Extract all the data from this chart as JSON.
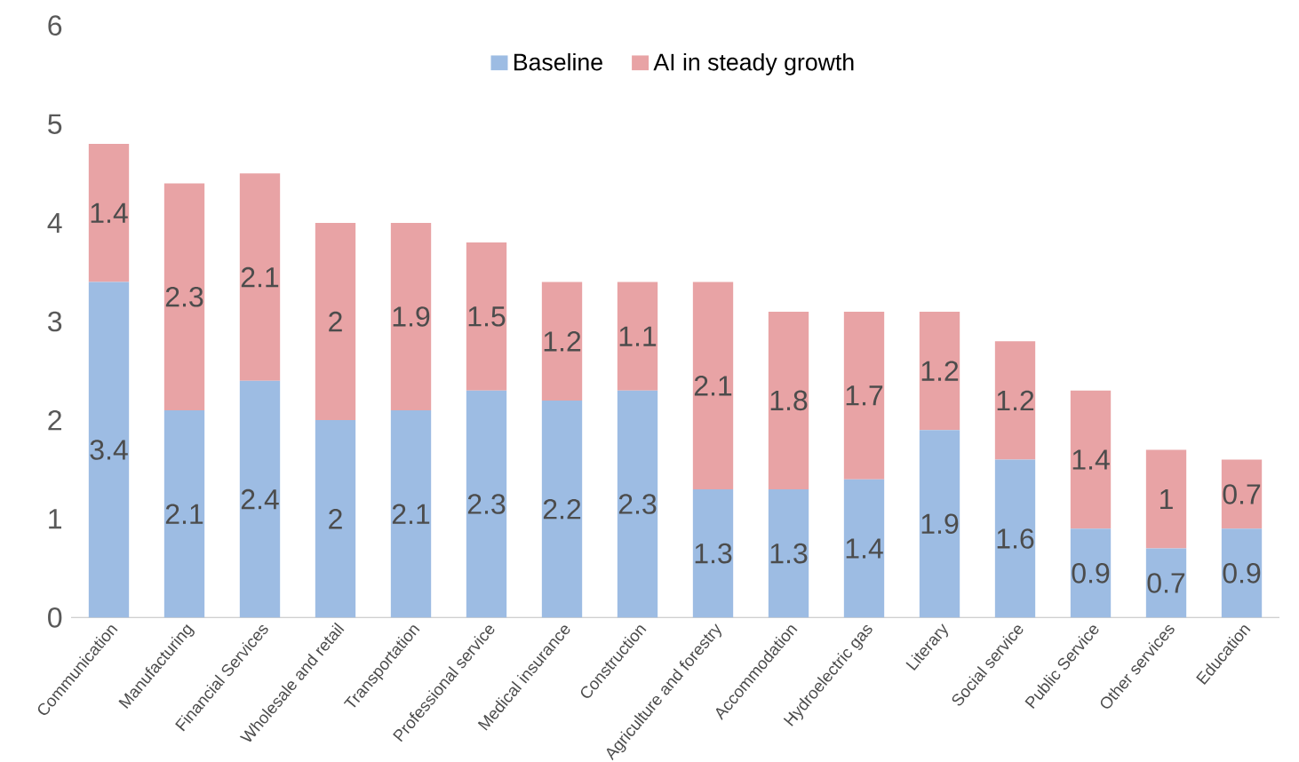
{
  "chart_data": {
    "type": "bar",
    "stacked": true,
    "data_labels": true,
    "legend": "top",
    "ylim": [
      0,
      6
    ],
    "yticks": [
      0,
      1,
      2,
      3,
      4,
      5,
      6
    ],
    "grid": false,
    "categories": [
      "Communication",
      "Manufacturing",
      "Financial Services",
      "Wholesale and retail",
      "Transportation",
      "Professional service",
      "Medical insurance",
      "Construction",
      "Agriculture and forestry",
      "Accommodation",
      "Hydroelectric gas",
      "Literary",
      "Social service",
      "Public Service",
      "Other services",
      "Education"
    ],
    "series": [
      {
        "name": "Baseline",
        "color": "#9dbce3",
        "values": [
          3.4,
          2.1,
          2.4,
          2,
          2.1,
          2.3,
          2.2,
          2.3,
          1.3,
          1.3,
          1.4,
          1.9,
          1.6,
          0.9,
          0.7,
          0.9
        ]
      },
      {
        "name": "AI in steady growth",
        "color": "#e8a3a5",
        "values": [
          1.4,
          2.3,
          2.1,
          2,
          1.9,
          1.5,
          1.2,
          1.1,
          2.1,
          1.8,
          1.7,
          1.2,
          1.2,
          1.4,
          1,
          0.7
        ]
      }
    ]
  }
}
